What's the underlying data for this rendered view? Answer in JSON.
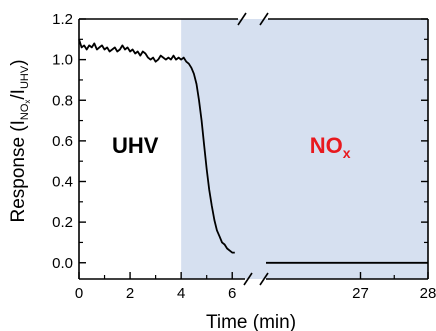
{
  "chart_data": {
    "type": "line",
    "xlabel": "Time (min)",
    "ylabel": {
      "prefix": "Response (I",
      "num_sub_main": "NO",
      "num_sub_sub": "x",
      "slash": "/I",
      "den_sub": "UHV",
      "suffix": ")"
    },
    "ylim": [
      -0.08,
      1.2
    ],
    "y_ticks": [
      "0.0",
      "0.2",
      "0.4",
      "0.6",
      "0.8",
      "1.0",
      "1.2"
    ],
    "x_axis_broken": true,
    "x_segments": [
      {
        "xlim": [
          0,
          6.5
        ],
        "ticks": [
          "0",
          "2",
          "4",
          "6"
        ]
      },
      {
        "xlim": [
          25.6,
          28
        ],
        "ticks": [
          "27",
          "28"
        ]
      }
    ],
    "shaded_region": {
      "x_start": 4,
      "color": "#d6e0f0"
    },
    "annotations": [
      {
        "text": "UHV",
        "x": 2.2,
        "y": 0.58,
        "color": "#000000"
      },
      {
        "text": "NO",
        "sub": "x",
        "x": 26.55,
        "y": 0.58,
        "color": "#e8191e"
      }
    ],
    "series": [
      {
        "segment": 0,
        "color": "#000000",
        "points": [
          [
            0.0,
            1.1
          ],
          [
            0.1,
            1.06
          ],
          [
            0.2,
            1.07
          ],
          [
            0.3,
            1.05
          ],
          [
            0.4,
            1.07
          ],
          [
            0.5,
            1.06
          ],
          [
            0.6,
            1.08
          ],
          [
            0.7,
            1.05
          ],
          [
            0.8,
            1.06
          ],
          [
            0.9,
            1.07
          ],
          [
            1.0,
            1.05
          ],
          [
            1.1,
            1.06
          ],
          [
            1.2,
            1.04
          ],
          [
            1.3,
            1.05
          ],
          [
            1.4,
            1.06
          ],
          [
            1.5,
            1.04
          ],
          [
            1.6,
            1.05
          ],
          [
            1.7,
            1.07
          ],
          [
            1.8,
            1.05
          ],
          [
            1.9,
            1.06
          ],
          [
            2.0,
            1.04
          ],
          [
            2.1,
            1.05
          ],
          [
            2.2,
            1.03
          ],
          [
            2.3,
            1.04
          ],
          [
            2.4,
            1.02
          ],
          [
            2.5,
            1.04
          ],
          [
            2.6,
            1.03
          ],
          [
            2.7,
            1.01
          ],
          [
            2.8,
            1.0
          ],
          [
            2.9,
            1.01
          ],
          [
            3.0,
            0.99
          ],
          [
            3.1,
            1.0
          ],
          [
            3.2,
            1.02
          ],
          [
            3.3,
            1.01
          ],
          [
            3.4,
            1.0
          ],
          [
            3.5,
            1.01
          ],
          [
            3.6,
            1.0
          ],
          [
            3.7,
            1.02
          ],
          [
            3.8,
            1.0
          ],
          [
            3.9,
            1.01
          ],
          [
            4.0,
            1.0
          ],
          [
            4.1,
            1.01
          ],
          [
            4.2,
            0.99
          ],
          [
            4.3,
            0.98
          ],
          [
            4.4,
            0.96
          ],
          [
            4.5,
            0.93
          ],
          [
            4.6,
            0.88
          ],
          [
            4.7,
            0.8
          ],
          [
            4.8,
            0.7
          ],
          [
            4.9,
            0.58
          ],
          [
            5.0,
            0.46
          ],
          [
            5.1,
            0.36
          ],
          [
            5.2,
            0.28
          ],
          [
            5.3,
            0.21
          ],
          [
            5.4,
            0.16
          ],
          [
            5.5,
            0.13
          ],
          [
            5.6,
            0.1
          ],
          [
            5.7,
            0.09
          ],
          [
            5.8,
            0.07
          ],
          [
            5.9,
            0.06
          ],
          [
            6.0,
            0.05
          ],
          [
            6.1,
            0.05
          ]
        ]
      },
      {
        "segment": 1,
        "color": "#000000",
        "points": [
          [
            25.6,
            0.0
          ],
          [
            28.0,
            0.0
          ]
        ]
      }
    ]
  }
}
